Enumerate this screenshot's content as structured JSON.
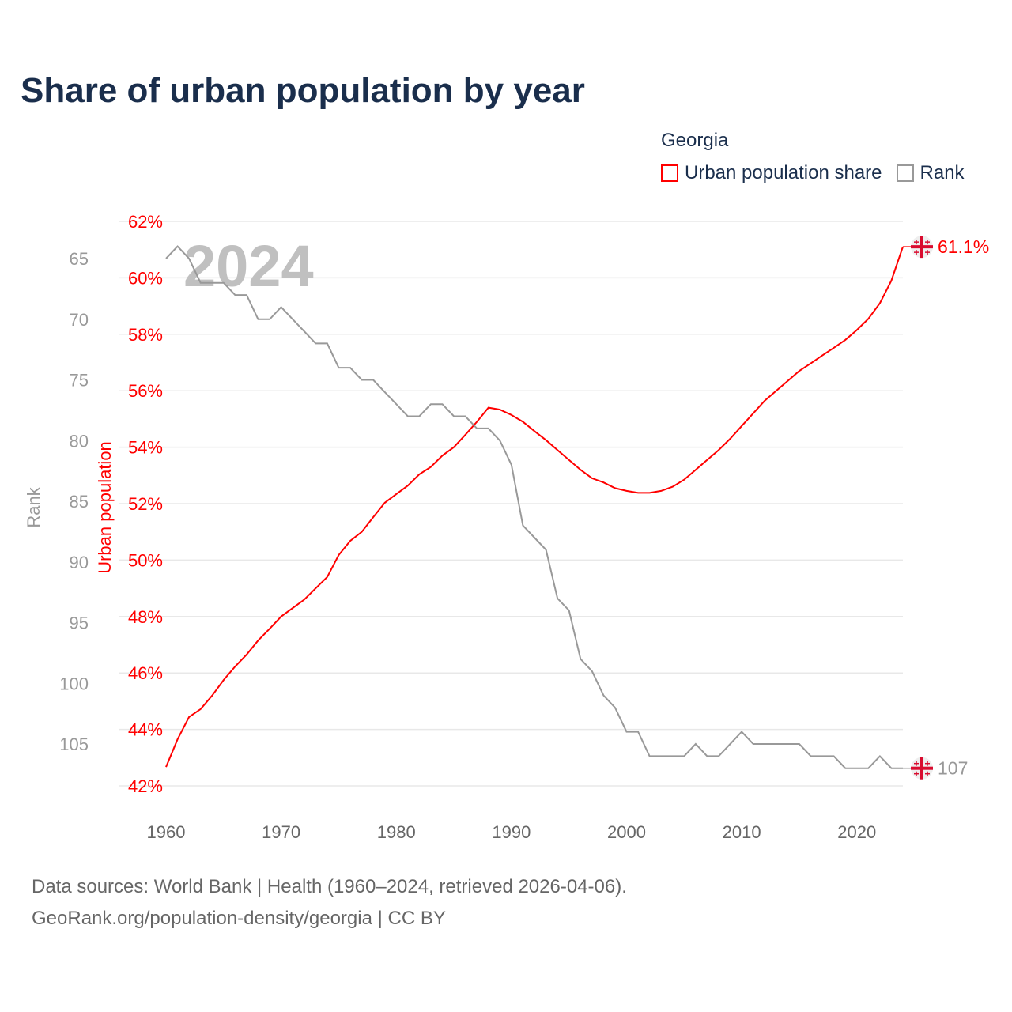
{
  "chart_data": {
    "type": "line",
    "title": "Share of urban population by year",
    "legend_title": "Georgia",
    "legend_placement": "top-right",
    "legend": [
      "Urban population share",
      "Rank"
    ],
    "watermark_year": "2024",
    "xlabel": "",
    "ylabel_left_outer": "Rank",
    "ylabel_left_inner": "Urban population",
    "x_ticks": [
      "1960",
      "1970",
      "1980",
      "1990",
      "2000",
      "2010",
      "2020"
    ],
    "y_ticks_urban": [
      "62%",
      "60%",
      "58%",
      "56%",
      "54%",
      "52%",
      "50%",
      "48%",
      "46%",
      "44%",
      "42%"
    ],
    "y_ticks_rank": [
      "65",
      "70",
      "75",
      "80",
      "85",
      "90",
      "95",
      "100",
      "105"
    ],
    "xlim": [
      1960,
      2024
    ],
    "ylim_urban": [
      42,
      62
    ],
    "ylim_rank": [
      65,
      105
    ],
    "colors": {
      "urban": "#ff0000",
      "rank": "#999999",
      "title": "#1a2e4c",
      "flag": "#d90c2f"
    },
    "x": [
      1960,
      1961,
      1962,
      1963,
      1964,
      1965,
      1966,
      1967,
      1968,
      1969,
      1970,
      1971,
      1972,
      1973,
      1974,
      1975,
      1976,
      1977,
      1978,
      1979,
      1980,
      1981,
      1982,
      1983,
      1984,
      1985,
      1986,
      1987,
      1988,
      1989,
      1990,
      1991,
      1992,
      1993,
      1994,
      1995,
      1996,
      1997,
      1998,
      1999,
      2000,
      2001,
      2002,
      2003,
      2004,
      2005,
      2006,
      2007,
      2008,
      2009,
      2010,
      2011,
      2012,
      2013,
      2014,
      2015,
      2016,
      2017,
      2018,
      2019,
      2020,
      2021,
      2022,
      2023,
      2024
    ],
    "series": [
      {
        "name": "Urban population share",
        "axis": "urban",
        "values": [
          42.67,
          43.65,
          44.44,
          44.72,
          45.2,
          45.75,
          46.23,
          46.65,
          47.15,
          47.57,
          48.0,
          48.3,
          48.6,
          49.0,
          49.4,
          50.18,
          50.68,
          51.0,
          51.52,
          52.03,
          52.34,
          52.64,
          53.04,
          53.3,
          53.7,
          54.0,
          54.44,
          54.9,
          55.4,
          55.33,
          55.14,
          54.9,
          54.57,
          54.25,
          53.9,
          53.55,
          53.2,
          52.9,
          52.75,
          52.55,
          52.45,
          52.38,
          52.38,
          52.45,
          52.6,
          52.85,
          53.2,
          53.55,
          53.9,
          54.3,
          54.75,
          55.2,
          55.65,
          56.0,
          56.35,
          56.7,
          56.97,
          57.25,
          57.52,
          57.8,
          58.15,
          58.55,
          59.1,
          59.9,
          61.1
        ]
      },
      {
        "name": "Rank",
        "axis": "rank",
        "values": [
          65,
          64,
          65,
          67,
          67,
          67,
          68,
          68,
          70,
          70,
          69,
          70,
          71,
          72,
          72,
          74,
          74,
          75,
          75,
          76,
          77,
          78,
          78,
          77,
          77,
          78,
          78,
          79,
          79,
          80,
          82,
          87,
          88,
          89,
          93,
          94,
          98,
          99,
          101,
          102,
          104,
          104,
          106,
          106,
          106,
          106,
          105,
          106,
          106,
          105,
          104,
          105,
          105,
          105,
          105,
          105,
          106,
          106,
          106,
          107,
          107,
          107,
          106,
          107,
          107
        ]
      }
    ],
    "end_labels": {
      "urban": "61.1%",
      "rank": "107"
    }
  },
  "footer": {
    "line1": "Data sources: World Bank | Health (1960–2024, retrieved 2026-04-06).",
    "line2": "GeoRank.org/population-density/georgia | CC BY"
  }
}
